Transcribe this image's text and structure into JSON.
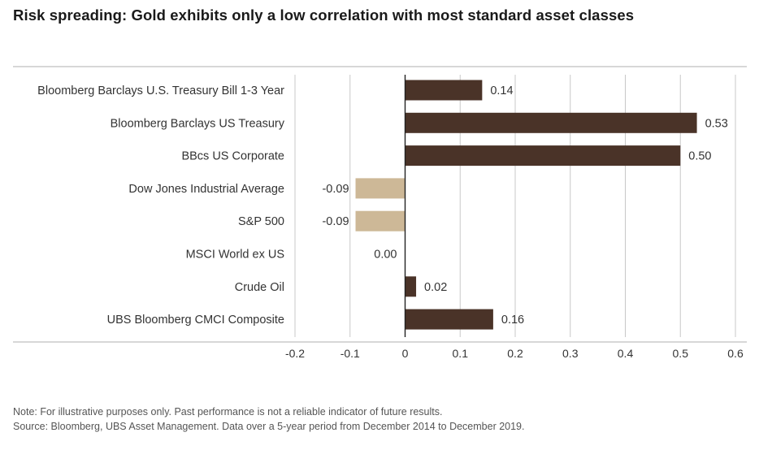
{
  "title": "Risk spreading: Gold exhibits only a low correlation with most standard asset classes",
  "chart_data": {
    "type": "bar",
    "orientation": "horizontal",
    "title": "Risk spreading: Gold exhibits only a low correlation with most standard asset classes",
    "categories": [
      "Bloomberg Barclays U.S. Treasury Bill 1-3 Year",
      "Bloomberg Barclays US Treasury",
      "BBcs US Corporate",
      "Dow Jones Industrial Average",
      "S&P 500",
      "MSCI World ex US",
      "Crude Oil",
      "UBS Bloomberg CMCI Composite"
    ],
    "values": [
      0.14,
      0.53,
      0.5,
      -0.09,
      -0.09,
      0.0,
      0.02,
      0.16
    ],
    "value_labels": [
      "0.14",
      "0.53",
      "0.50",
      "-0.09",
      "-0.09",
      "0.00",
      "0.02",
      "0.16"
    ],
    "xlim": [
      -0.2,
      0.6
    ],
    "xticks": [
      -0.2,
      -0.1,
      0,
      0.1,
      0.2,
      0.3,
      0.4,
      0.5,
      0.6
    ],
    "xtick_labels": [
      "-0.2",
      "-0.1",
      "0",
      "0.1",
      "0.2",
      "0.3",
      "0.4",
      "0.5",
      "0.6"
    ],
    "xlabel": "",
    "ylabel": "",
    "grid": true,
    "legend": "none",
    "colors": {
      "positive": "#4a3328",
      "negative": "#cdb897",
      "grid": "#c8c8c8",
      "axis": "#222222",
      "frame": "#bfbfbf"
    }
  },
  "notes": {
    "note": "Note: For illustrative purposes only. Past performance is not a reliable indicator of future results.",
    "source": "Source: Bloomberg, UBS Asset Management. Data over a 5-year period from December 2014 to December 2019."
  }
}
